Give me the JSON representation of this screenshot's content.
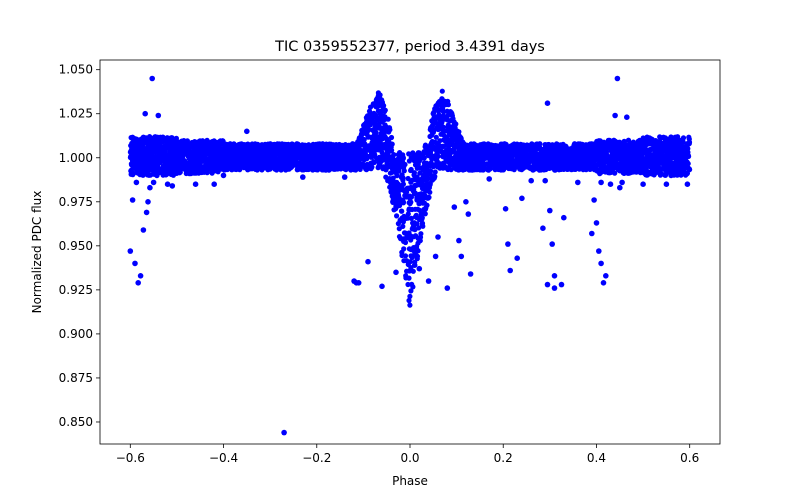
{
  "chart_data": {
    "type": "scatter",
    "title": "TIC 0359552377, period 3.4391 days",
    "xlabel": "Phase",
    "ylabel": "Normalized PDC flux",
    "xlim": [
      -0.665,
      0.665
    ],
    "ylim": [
      0.8375,
      1.0555
    ],
    "xticks": [
      -0.6,
      -0.4,
      -0.2,
      0.0,
      0.2,
      0.4,
      0.6
    ],
    "xtick_labels": [
      "−0.6",
      "−0.4",
      "−0.2",
      "0.0",
      "0.2",
      "0.4",
      "0.6"
    ],
    "yticks": [
      0.85,
      0.875,
      0.9,
      0.925,
      0.95,
      0.975,
      1.0,
      1.025,
      1.05
    ],
    "ytick_labels": [
      "0.850",
      "0.875",
      "0.900",
      "0.925",
      "0.950",
      "0.975",
      "1.000",
      "1.025",
      "1.050"
    ],
    "grid": false,
    "marker_color": "#0000ff",
    "series": [
      {
        "name": "Normalized PDC flux",
        "description": "Dense band of points near flux 1.000 across phase -0.6 to 0.6 with a deep dip to about 0.912 at phase 0.0 and peaks near 1.040 at phase -0.07 and 0.07",
        "points": [
          [
            -0.6,
            0.947
          ],
          [
            -0.595,
            0.976
          ],
          [
            -0.59,
            0.94
          ],
          [
            -0.587,
            0.986
          ],
          [
            -0.583,
            0.929
          ],
          [
            -0.578,
            0.933
          ],
          [
            -0.572,
            0.959
          ],
          [
            -0.568,
            1.025
          ],
          [
            -0.565,
            0.969
          ],
          [
            -0.562,
            0.975
          ],
          [
            -0.558,
            0.983
          ],
          [
            -0.553,
            1.045
          ],
          [
            -0.55,
            0.986
          ],
          [
            -0.546,
            0.999
          ],
          [
            -0.543,
            0.99
          ],
          [
            -0.54,
            1.024
          ],
          [
            -0.52,
            0.985
          ],
          [
            -0.51,
            0.984
          ],
          [
            -0.46,
            0.985
          ],
          [
            -0.44,
            0.992
          ],
          [
            -0.42,
            0.985
          ],
          [
            -0.4,
            0.99
          ],
          [
            -0.35,
            1.015
          ],
          [
            -0.27,
            0.844
          ],
          [
            -0.23,
            0.989
          ],
          [
            -0.14,
            0.989
          ],
          [
            -0.12,
            0.93
          ],
          [
            -0.115,
            0.929
          ],
          [
            -0.11,
            0.929
          ],
          [
            -0.09,
            0.941
          ],
          [
            -0.06,
            0.927
          ],
          [
            -0.03,
            0.935
          ],
          [
            0.01,
            0.939
          ],
          [
            0.02,
            0.937
          ],
          [
            0.04,
            0.93
          ],
          [
            0.055,
            0.944
          ],
          [
            0.06,
            0.955
          ],
          [
            0.08,
            0.926
          ],
          [
            0.095,
            0.972
          ],
          [
            0.105,
            0.953
          ],
          [
            0.11,
            0.944
          ],
          [
            0.12,
            0.975
          ],
          [
            0.125,
            0.968
          ],
          [
            0.13,
            0.934
          ],
          [
            0.17,
            0.988
          ],
          [
            0.205,
            0.971
          ],
          [
            0.21,
            0.951
          ],
          [
            0.215,
            0.936
          ],
          [
            0.23,
            0.943
          ],
          [
            0.24,
            0.977
          ],
          [
            0.26,
            0.987
          ],
          [
            0.285,
            0.96
          ],
          [
            0.29,
            0.987
          ],
          [
            0.295,
            1.031
          ],
          [
            0.295,
            0.928
          ],
          [
            0.3,
            0.97
          ],
          [
            0.305,
            0.951
          ],
          [
            0.31,
            0.926
          ],
          [
            0.31,
            0.933
          ],
          [
            0.325,
            0.928
          ],
          [
            0.33,
            0.966
          ],
          [
            0.36,
            0.986
          ],
          [
            0.39,
            0.957
          ],
          [
            0.395,
            0.976
          ],
          [
            0.4,
            0.963
          ],
          [
            0.405,
            0.947
          ],
          [
            0.41,
            0.986
          ],
          [
            0.41,
            0.94
          ],
          [
            0.415,
            0.929
          ],
          [
            0.42,
            0.933
          ],
          [
            0.43,
            0.985
          ],
          [
            0.44,
            1.024
          ],
          [
            0.445,
            1.045
          ],
          [
            0.45,
            0.983
          ],
          [
            0.455,
            0.986
          ],
          [
            0.46,
            0.999
          ],
          [
            0.465,
            1.023
          ],
          [
            0.5,
            0.985
          ],
          [
            0.55,
            0.985
          ],
          [
            0.56,
            0.99
          ],
          [
            0.58,
            0.991
          ],
          [
            0.59,
            0.995
          ],
          [
            0.595,
            0.985
          ]
        ]
      }
    ]
  }
}
